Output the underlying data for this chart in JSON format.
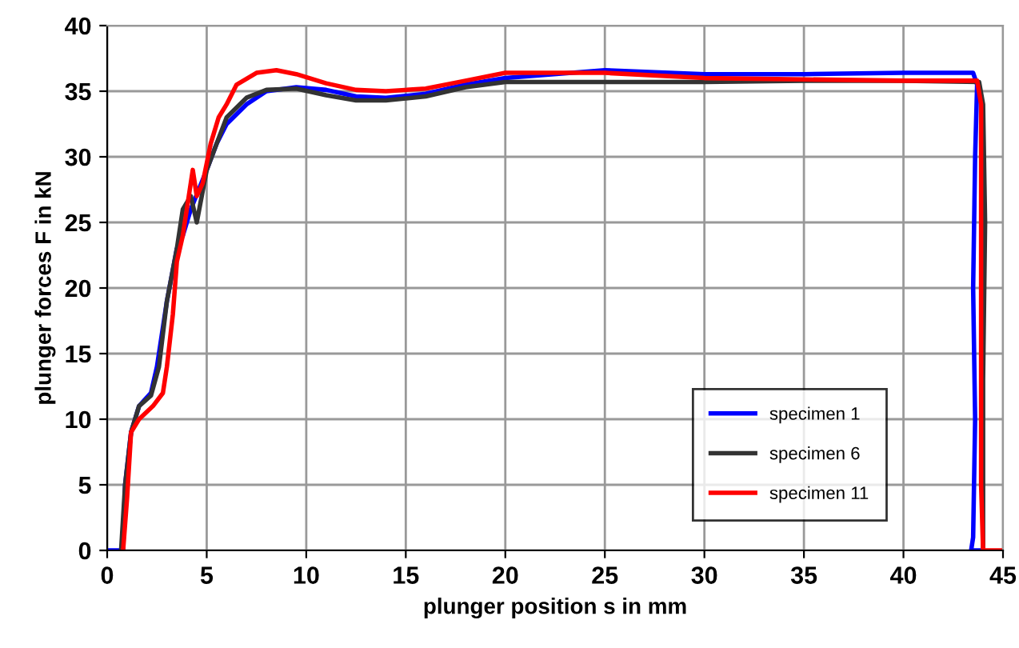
{
  "chart_data": {
    "type": "line",
    "xlabel": "plunger position s in mm",
    "ylabel": "plunger forces F in kN",
    "xlim": [
      0,
      45
    ],
    "ylim": [
      0,
      40
    ],
    "xticks": [
      0,
      5,
      10,
      15,
      20,
      25,
      30,
      35,
      40,
      45
    ],
    "yticks": [
      0,
      5,
      10,
      15,
      20,
      25,
      30,
      35,
      40
    ],
    "grid": true,
    "legend": "bottom right",
    "marker": "none",
    "line_style": "solid",
    "series": [
      {
        "name": "specimen 1",
        "color": "#0000ff",
        "x": [
          0,
          0.8,
          0.9,
          1.2,
          1.6,
          2.2,
          2.5,
          3,
          3.5,
          3.8,
          4.2,
          4.6,
          5,
          5.5,
          6,
          7,
          8,
          9.5,
          11,
          12.5,
          14,
          16,
          18,
          20,
          25,
          30,
          35,
          40,
          43.5,
          43.7,
          43.6,
          43.5,
          43.6,
          43.5,
          43.4,
          43.8
        ],
        "values": [
          0,
          0,
          5,
          9,
          11,
          12,
          14,
          19,
          23,
          24,
          26,
          27.5,
          29,
          31,
          32.5,
          34,
          35,
          35.3,
          35.1,
          34.6,
          34.5,
          34.8,
          35.5,
          36,
          36.6,
          36.3,
          36.3,
          36.4,
          36.4,
          35.5,
          30,
          20,
          10,
          1,
          0,
          0
        ]
      },
      {
        "name": "specimen 6",
        "color": "#333333",
        "x": [
          0.7,
          0.9,
          1.2,
          1.6,
          2.2,
          2.6,
          3,
          3.5,
          3.8,
          4.2,
          4.5,
          5,
          5.5,
          6,
          7,
          8,
          9.5,
          11,
          12.5,
          14,
          16,
          18,
          20,
          25,
          30,
          35,
          40,
          43.8,
          44,
          44.1,
          44,
          44
        ],
        "values": [
          0,
          5,
          9,
          11,
          11.8,
          14,
          19,
          23,
          26,
          27,
          25,
          29,
          31,
          33,
          34.5,
          35.1,
          35.2,
          34.7,
          34.3,
          34.3,
          34.6,
          35.3,
          35.7,
          35.7,
          35.7,
          35.8,
          35.8,
          35.7,
          34,
          25,
          13,
          0
        ]
      },
      {
        "name": "specimen 11",
        "color": "#ff0000",
        "x": [
          0.8,
          1,
          1.2,
          1.6,
          2.3,
          2.8,
          3,
          3.3,
          3.5,
          3.8,
          4.1,
          4.3,
          4.5,
          4.8,
          5.2,
          5.6,
          6,
          6.5,
          7.5,
          8.5,
          9.5,
          11,
          12.5,
          14,
          16,
          18,
          20,
          25,
          30,
          35,
          40,
          43.7,
          43.9,
          43.9,
          43.9,
          44,
          45
        ],
        "values": [
          0,
          4,
          9,
          10,
          11,
          12,
          14,
          18,
          22,
          24,
          27,
          29,
          27,
          28,
          31,
          33,
          34,
          35.5,
          36.4,
          36.6,
          36.3,
          35.6,
          35.1,
          35,
          35.2,
          35.8,
          36.4,
          36.4,
          36,
          35.9,
          35.8,
          35.8,
          34,
          20,
          5,
          0,
          0
        ]
      }
    ]
  }
}
